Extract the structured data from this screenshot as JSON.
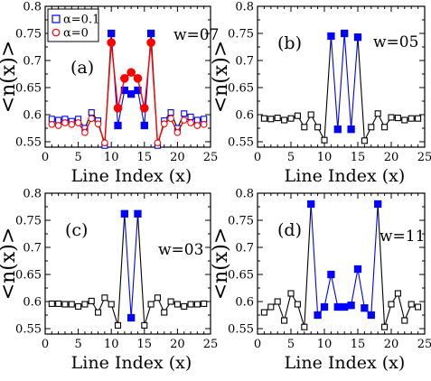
{
  "chart_data": [
    {
      "type": "line",
      "panel_label": "(a)",
      "annotation": "w=07",
      "xlabel": "Line Index (x)",
      "ylabel": "<n(x)>",
      "xlim": [
        0,
        25
      ],
      "ylim": [
        0.54,
        0.8
      ],
      "xticks": [
        "0",
        "5",
        "10",
        "15",
        "20",
        "25"
      ],
      "yticks": [
        "0.55",
        "0.6",
        "0.65",
        "0.7",
        "0.75",
        "0.8"
      ],
      "legend": {
        "placement": "top-left"
      },
      "series": [
        {
          "name": "α=0.1",
          "style": "black line, blue square markers (open outside, filled inside)",
          "color": "#0000ff",
          "x": [
            1,
            2,
            3,
            4,
            5,
            6,
            7,
            8,
            9,
            10,
            11,
            12,
            13,
            14,
            15,
            16,
            17,
            18,
            19,
            20,
            21,
            22,
            23,
            24
          ],
          "values": [
            0.592,
            0.59,
            0.592,
            0.588,
            0.592,
            0.575,
            0.604,
            0.589,
            0.543,
            0.75,
            0.58,
            0.645,
            0.638,
            0.645,
            0.58,
            0.75,
            0.543,
            0.589,
            0.604,
            0.575,
            0.602,
            0.596,
            0.59,
            0.592
          ],
          "filled_range": [
            10,
            16
          ]
        },
        {
          "name": "α=0",
          "style": "red line, red open circles (filled inside)",
          "color": "#ff0000",
          "x": [
            1,
            2,
            3,
            4,
            5,
            6,
            7,
            8,
            9,
            10,
            11,
            12,
            13,
            14,
            15,
            16,
            17,
            18,
            19,
            20,
            21,
            22,
            23,
            24
          ],
          "values": [
            0.582,
            0.58,
            0.585,
            0.582,
            0.585,
            0.567,
            0.593,
            0.583,
            0.548,
            0.733,
            0.612,
            0.667,
            0.678,
            0.667,
            0.612,
            0.733,
            0.548,
            0.583,
            0.593,
            0.567,
            0.59,
            0.585,
            0.58,
            0.582
          ],
          "filled_range": [
            10,
            16
          ]
        }
      ]
    },
    {
      "type": "line",
      "panel_label": "(b)",
      "annotation": "w=05",
      "xlabel": "Line Index (x)",
      "ylabel": "<n(x)>",
      "xlim": [
        0,
        25
      ],
      "ylim": [
        0.54,
        0.8
      ],
      "xticks": [
        "0",
        "5",
        "10",
        "15",
        "20",
        "25"
      ],
      "yticks": [
        "0.55",
        "0.6",
        "0.65",
        "0.7",
        "0.75",
        "0.8"
      ],
      "series": [
        {
          "color": "#0000ff",
          "x": [
            1,
            2,
            3,
            4,
            5,
            6,
            7,
            8,
            9,
            10,
            11,
            12,
            13,
            14,
            15,
            16,
            17,
            18,
            19,
            20,
            21,
            22,
            23,
            24
          ],
          "values": [
            0.593,
            0.592,
            0.594,
            0.59,
            0.593,
            0.598,
            0.577,
            0.6,
            0.577,
            0.553,
            0.745,
            0.573,
            0.75,
            0.573,
            0.743,
            0.552,
            0.577,
            0.602,
            0.577,
            0.595,
            0.594,
            0.59,
            0.593,
            0.593
          ],
          "filled_range": [
            11,
            15
          ]
        }
      ]
    },
    {
      "type": "line",
      "panel_label": "(c)",
      "annotation": "w=03",
      "xlabel": "Line Index (x)",
      "ylabel": "<n(x)>",
      "xlim": [
        0,
        25
      ],
      "ylim": [
        0.54,
        0.8
      ],
      "xticks": [
        "0",
        "5",
        "10",
        "15",
        "20",
        "25"
      ],
      "yticks": [
        "0.55",
        "0.6",
        "0.65",
        "0.7",
        "0.75",
        "0.8"
      ],
      "series": [
        {
          "color": "#0000ff",
          "x": [
            1,
            2,
            3,
            4,
            5,
            6,
            7,
            8,
            9,
            10,
            11,
            12,
            13,
            14,
            15,
            16,
            17,
            18,
            19,
            20,
            21,
            22,
            23,
            24
          ],
          "values": [
            0.596,
            0.596,
            0.595,
            0.595,
            0.591,
            0.595,
            0.601,
            0.58,
            0.607,
            0.595,
            0.556,
            0.762,
            0.57,
            0.762,
            0.556,
            0.595,
            0.607,
            0.58,
            0.6,
            0.595,
            0.591,
            0.595,
            0.595,
            0.596
          ],
          "filled_range": [
            12,
            14
          ]
        }
      ]
    },
    {
      "type": "line",
      "panel_label": "(d)",
      "annotation": "w=11",
      "xlabel": "Line Index (x)",
      "ylabel": "<n(x)>",
      "xlim": [
        0,
        25
      ],
      "ylim": [
        0.54,
        0.8
      ],
      "xticks": [
        "0",
        "5",
        "10",
        "15",
        "20",
        "25"
      ],
      "yticks": [
        "0.55",
        "0.6",
        "0.65",
        "0.7",
        "0.75",
        "0.8"
      ],
      "series": [
        {
          "color": "#0000ff",
          "x": [
            1,
            2,
            3,
            4,
            5,
            6,
            7,
            8,
            9,
            10,
            11,
            12,
            13,
            14,
            15,
            16,
            17,
            18,
            19,
            20,
            21,
            22,
            23,
            24
          ],
          "values": [
            0.58,
            0.59,
            0.6,
            0.565,
            0.615,
            0.595,
            0.553,
            0.78,
            0.575,
            0.59,
            0.65,
            0.59,
            0.59,
            0.593,
            0.66,
            0.588,
            0.575,
            0.78,
            0.553,
            0.595,
            0.615,
            0.565,
            0.595,
            0.59
          ],
          "filled_range": [
            8,
            18
          ]
        }
      ]
    }
  ]
}
